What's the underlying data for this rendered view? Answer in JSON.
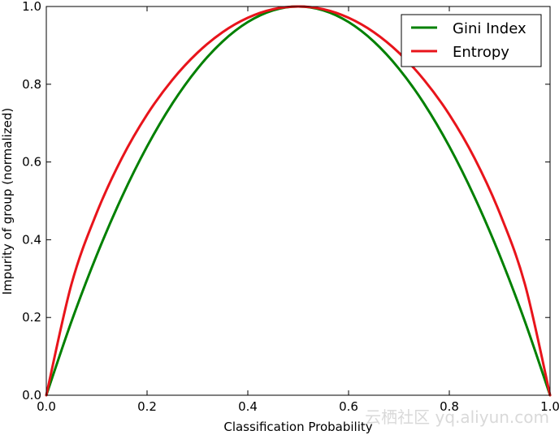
{
  "chart_data": {
    "type": "line",
    "xlabel": "Classification Probability",
    "ylabel": "Impurity of group (normalized)",
    "xlim": [
      0,
      1
    ],
    "ylim": [
      0,
      1
    ],
    "xticks": [
      "0.0",
      "0.2",
      "0.4",
      "0.6",
      "0.8",
      "1.0"
    ],
    "yticks": [
      "0.0",
      "0.2",
      "0.4",
      "0.6",
      "0.8",
      "1.0"
    ],
    "grid": false,
    "legend_position": "top-right",
    "x": [
      0,
      0.05,
      0.1,
      0.15,
      0.2,
      0.25,
      0.3,
      0.35,
      0.4,
      0.45,
      0.5,
      0.55,
      0.6,
      0.65,
      0.7,
      0.75,
      0.8,
      0.85,
      0.9,
      0.95,
      1.0
    ],
    "series": [
      {
        "name": "Gini Index",
        "color": "#008000",
        "values": [
          0,
          0.19,
          0.36,
          0.51,
          0.64,
          0.75,
          0.84,
          0.91,
          0.96,
          0.99,
          1.0,
          0.99,
          0.96,
          0.91,
          0.84,
          0.75,
          0.64,
          0.51,
          0.36,
          0.19,
          0
        ]
      },
      {
        "name": "Entropy",
        "color": "#e8141b",
        "values": [
          0,
          0.286,
          0.469,
          0.61,
          0.722,
          0.811,
          0.881,
          0.934,
          0.971,
          0.993,
          1.0,
          0.993,
          0.971,
          0.934,
          0.881,
          0.811,
          0.722,
          0.61,
          0.469,
          0.286,
          0
        ]
      }
    ]
  },
  "watermark": "云栖社区 yq.aliyun.com"
}
